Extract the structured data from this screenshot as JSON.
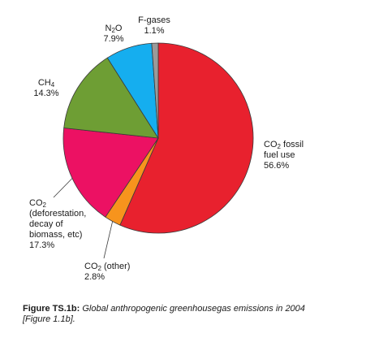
{
  "chart_data": {
    "type": "pie",
    "title": "",
    "slices": [
      {
        "gas": "CO",
        "sub": "2",
        "suffix": " fossil fuel use",
        "value": 56.6,
        "value_label": "56.6%",
        "color": "#e8212e"
      },
      {
        "gas": "CO",
        "sub": "2",
        "suffix": " (other)",
        "value": 2.8,
        "value_label": "2.8%",
        "color": "#f7941d"
      },
      {
        "gas": "CO",
        "sub": "2",
        "suffix": " (deforestation, decay of biomass, etc)",
        "value": 17.3,
        "value_label": "17.3%",
        "color": "#ec1163"
      },
      {
        "gas": "CH",
        "sub": "4",
        "suffix": "",
        "value": 14.3,
        "value_label": "14.3%",
        "color": "#6e9e34"
      },
      {
        "gas": "N",
        "sub": "2",
        "suffix": "O",
        "value": 7.9,
        "value_label": "7.9%",
        "color": "#15aeef"
      },
      {
        "gas": "F-gases",
        "sub": "",
        "suffix": "",
        "value": 1.1,
        "value_label": "1.1%",
        "color": "#9a9a9a"
      }
    ],
    "start_angle_deg": 0,
    "direction": "clockwise",
    "labels": {
      "co2_fossil": {
        "gas": "CO",
        "sub": "2",
        "line1_rest": " fossil",
        "line2": "fuel use",
        "value": "56.6%"
      },
      "co2_other": {
        "gas": "CO",
        "sub": "2",
        "line1_rest": " (other)",
        "value": "2.8%"
      },
      "co2_defor": {
        "gas": "CO",
        "sub": "2",
        "line2": "(deforestation,",
        "line3": "decay of",
        "line4": "biomass, etc)",
        "value": "17.3%"
      },
      "ch4": {
        "gas": "CH",
        "sub": "4",
        "value": "14.3%"
      },
      "n2o": {
        "gas": "N",
        "sub": "2",
        "rest": "O",
        "value": "7.9%"
      },
      "fgases": {
        "name": "F-gases",
        "value": "1.1%"
      }
    }
  },
  "caption": {
    "label": "Figure TS.1b:",
    "text": " Global anthropogenic greenhousegas emissions in 2004",
    "ref": "[Figure 1.1b]."
  }
}
